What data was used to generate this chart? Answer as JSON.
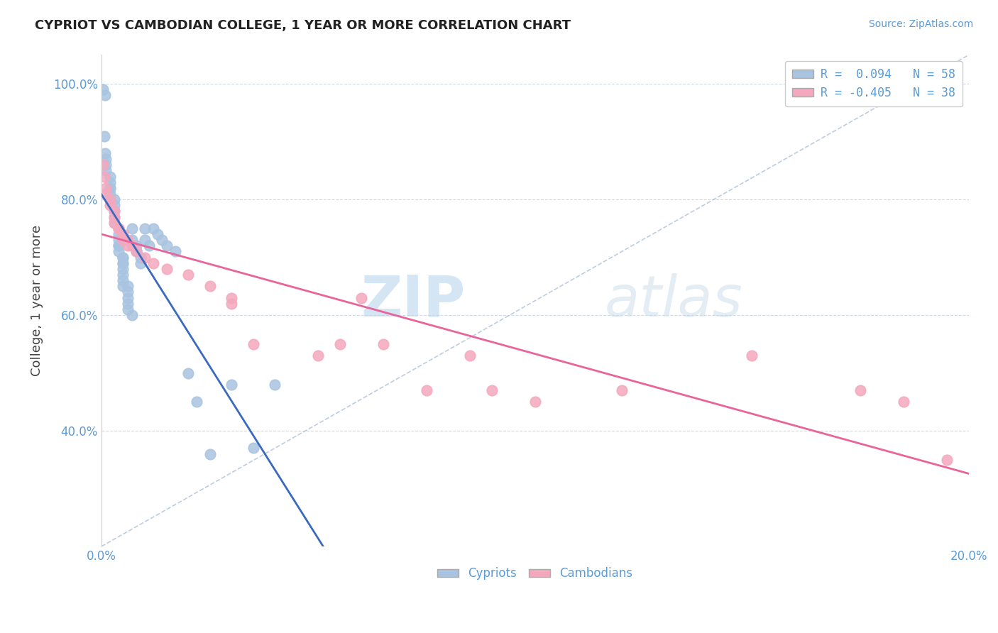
{
  "title": "CYPRIOT VS CAMBODIAN COLLEGE, 1 YEAR OR MORE CORRELATION CHART",
  "source_text": "Source: ZipAtlas.com",
  "ylabel": "College, 1 year or more",
  "xlim": [
    0.0,
    0.2
  ],
  "ylim": [
    0.2,
    1.05
  ],
  "ytick_positions": [
    0.4,
    0.6,
    0.8,
    1.0
  ],
  "cypriot_color": "#a8c4e0",
  "cambodian_color": "#f4a8be",
  "cypriot_line_color": "#3a6abf",
  "cambodian_line_color": "#e8649a",
  "ref_line_color": "#a0b8d8",
  "background_color": "#ffffff",
  "grid_color": "#d0d8e8",
  "watermark_color": "#ccdff0",
  "cypriot_x": [
    0.0004,
    0.0008,
    0.0006,
    0.0008,
    0.001,
    0.001,
    0.001,
    0.002,
    0.002,
    0.002,
    0.002,
    0.002,
    0.003,
    0.003,
    0.003,
    0.003,
    0.003,
    0.004,
    0.004,
    0.004,
    0.004,
    0.004,
    0.004,
    0.005,
    0.005,
    0.005,
    0.005,
    0.005,
    0.005,
    0.005,
    0.005,
    0.006,
    0.006,
    0.006,
    0.006,
    0.006,
    0.007,
    0.007,
    0.007,
    0.008,
    0.008,
    0.008,
    0.009,
    0.009,
    0.01,
    0.01,
    0.011,
    0.012,
    0.013,
    0.014,
    0.015,
    0.017,
    0.02,
    0.022,
    0.025,
    0.03,
    0.035,
    0.04
  ],
  "cypriot_y": [
    0.99,
    0.98,
    0.91,
    0.88,
    0.87,
    0.86,
    0.85,
    0.84,
    0.83,
    0.82,
    0.82,
    0.81,
    0.8,
    0.79,
    0.78,
    0.77,
    0.76,
    0.75,
    0.74,
    0.73,
    0.72,
    0.72,
    0.71,
    0.7,
    0.7,
    0.69,
    0.69,
    0.68,
    0.67,
    0.66,
    0.65,
    0.65,
    0.64,
    0.63,
    0.62,
    0.61,
    0.6,
    0.75,
    0.73,
    0.72,
    0.71,
    0.71,
    0.7,
    0.69,
    0.75,
    0.73,
    0.72,
    0.75,
    0.74,
    0.73,
    0.72,
    0.71,
    0.5,
    0.45,
    0.36,
    0.48,
    0.37,
    0.48
  ],
  "cambodian_x": [
    0.0004,
    0.0006,
    0.001,
    0.001,
    0.002,
    0.002,
    0.003,
    0.003,
    0.003,
    0.004,
    0.004,
    0.005,
    0.005,
    0.006,
    0.006,
    0.007,
    0.008,
    0.01,
    0.012,
    0.015,
    0.02,
    0.025,
    0.03,
    0.03,
    0.035,
    0.05,
    0.055,
    0.06,
    0.065,
    0.075,
    0.085,
    0.09,
    0.1,
    0.12,
    0.15,
    0.175,
    0.185,
    0.195
  ],
  "cambodian_y": [
    0.86,
    0.84,
    0.82,
    0.81,
    0.8,
    0.79,
    0.78,
    0.77,
    0.76,
    0.75,
    0.75,
    0.74,
    0.73,
    0.72,
    0.73,
    0.72,
    0.71,
    0.7,
    0.69,
    0.68,
    0.67,
    0.65,
    0.63,
    0.62,
    0.55,
    0.53,
    0.55,
    0.63,
    0.55,
    0.47,
    0.53,
    0.47,
    0.45,
    0.47,
    0.53,
    0.47,
    0.45,
    0.35
  ]
}
